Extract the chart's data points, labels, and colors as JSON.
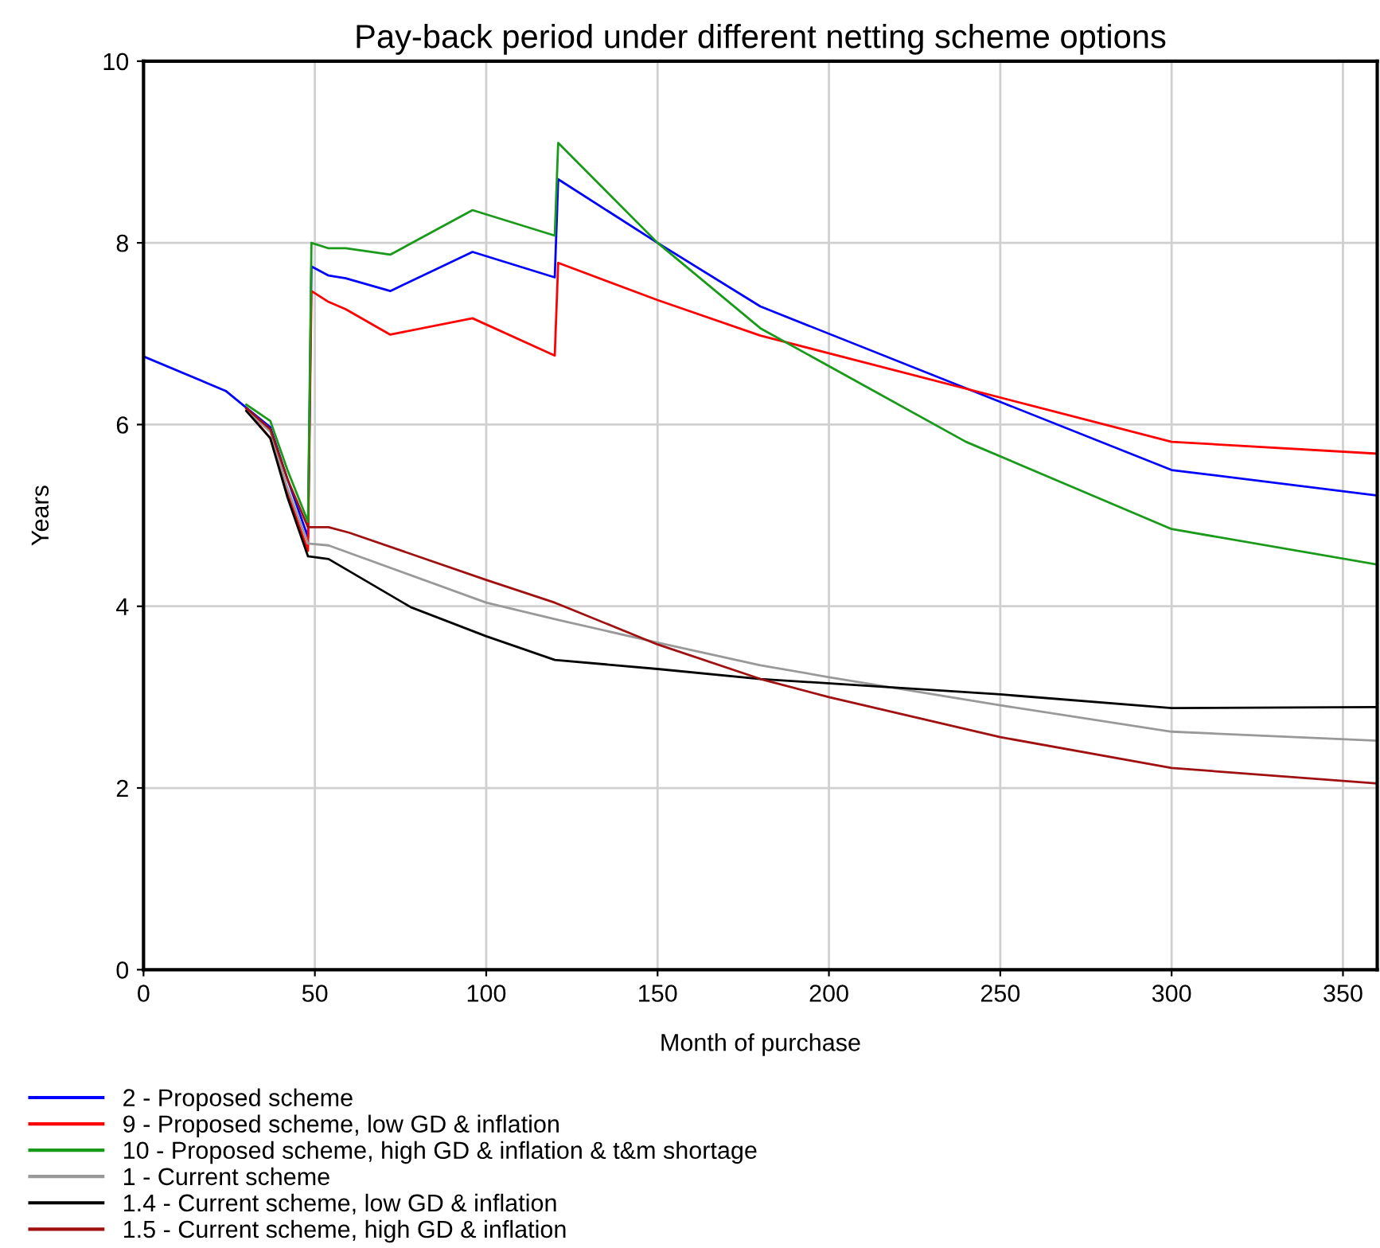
{
  "chart_data": {
    "type": "line",
    "title": "Pay-back period under different netting scheme options",
    "xlabel": "Month of purchase",
    "ylabel": "Years",
    "xlim": [
      0,
      360
    ],
    "ylim": [
      0,
      10
    ],
    "xticks": [
      0,
      50,
      100,
      150,
      200,
      250,
      300,
      350
    ],
    "yticks": [
      0,
      2,
      4,
      6,
      8,
      10
    ],
    "grid": true,
    "legend": "bottom",
    "line_style": "solid",
    "marker": "none",
    "series": [
      {
        "name": "2 - Proposed scheme",
        "color": "#0000ff",
        "x": [
          0,
          24,
          37,
          42,
          48,
          49,
          54,
          59,
          72,
          96,
          120,
          121,
          150,
          180,
          300,
          360
        ],
        "values": [
          6.75,
          6.37,
          5.97,
          5.4,
          4.76,
          7.74,
          7.64,
          7.61,
          7.47,
          7.9,
          7.62,
          8.7,
          8.0,
          7.3,
          5.5,
          5.22
        ]
      },
      {
        "name": "9 - Proposed scheme, low GD & inflation",
        "color": "#ff0000",
        "x": [
          30,
          37,
          42,
          48,
          49,
          54,
          59,
          72,
          96,
          120,
          121,
          150,
          180,
          300,
          360
        ],
        "values": [
          6.17,
          5.85,
          5.25,
          4.61,
          7.47,
          7.35,
          7.27,
          6.99,
          7.17,
          6.76,
          7.78,
          7.37,
          6.98,
          5.81,
          5.68
        ]
      },
      {
        "name": "10 - Proposed scheme, high GD & inflation & t&m shortage",
        "color": "#1a9a1a",
        "x": [
          30,
          37,
          42,
          48,
          49,
          54,
          59,
          72,
          96,
          120,
          121,
          150,
          180,
          240,
          300,
          360
        ],
        "values": [
          6.22,
          6.04,
          5.5,
          4.93,
          8.0,
          7.94,
          7.94,
          7.87,
          8.36,
          8.08,
          9.1,
          8.0,
          7.06,
          5.81,
          4.85,
          4.46
        ]
      },
      {
        "name": "1 - Current scheme",
        "color": "#999999",
        "x": [
          30,
          37,
          42,
          48,
          54,
          100,
          121,
          150,
          180,
          200,
          250,
          300,
          360
        ],
        "values": [
          6.16,
          5.92,
          5.3,
          4.69,
          4.67,
          4.04,
          3.85,
          3.6,
          3.35,
          3.22,
          2.91,
          2.62,
          2.52
        ]
      },
      {
        "name": "1.4 - Current scheme, low GD & inflation",
        "color": "#000000",
        "x": [
          30,
          37,
          42,
          48,
          54,
          78,
          100,
          120,
          150,
          180,
          250,
          300,
          360
        ],
        "values": [
          6.15,
          5.85,
          5.2,
          4.55,
          4.52,
          3.99,
          3.67,
          3.41,
          3.31,
          3.2,
          3.03,
          2.88,
          2.89
        ]
      },
      {
        "name": "1.5 - Current scheme, high GD & inflation",
        "color": "#a01010",
        "x": [
          30,
          37,
          42,
          48,
          54,
          60,
          100,
          120,
          150,
          180,
          200,
          250,
          300,
          360
        ],
        "values": [
          6.18,
          5.95,
          5.4,
          4.87,
          4.87,
          4.81,
          4.29,
          4.04,
          3.58,
          3.2,
          3.0,
          2.56,
          2.22,
          2.05
        ]
      }
    ]
  }
}
